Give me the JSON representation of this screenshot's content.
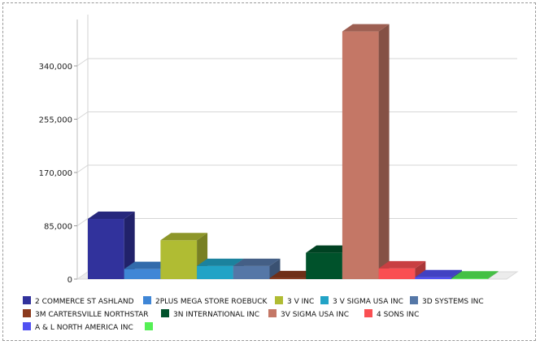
{
  "chart_data": {
    "type": "bar",
    "title": "",
    "xlabel": "",
    "ylabel": "",
    "ylim": [
      0,
      400000
    ],
    "yticks": [
      0,
      85000,
      170000,
      255000,
      340000
    ],
    "ytick_labels": [
      "0",
      "85,000",
      "170,000",
      "255,000",
      "340,000"
    ],
    "grid": true,
    "legend_position": "bottom",
    "three_d": true,
    "categories": [
      "2 COMMERCE ST ASHLAND",
      "2PLUS MEGA STORE ROEBUCK",
      "3 V INC",
      "3 V SIGMA USA INC",
      "3D SYSTEMS INC",
      "3M CARTERSVILLE NORTHSTAR",
      "3N INTERNATIONAL INC",
      "3V SIGMA USA INC",
      "4 SONS INC",
      "A & L NORTH AMERICA INC",
      ""
    ],
    "values": [
      96000,
      16000,
      62000,
      21000,
      21000,
      1500,
      42000,
      395000,
      17000,
      3000,
      1000
    ],
    "colors": [
      "#31329c",
      "#3f86d6",
      "#b0bc33",
      "#22a3c6",
      "#5577a7",
      "#8b3a1d",
      "#00522b",
      "#c47766",
      "#fa4f52",
      "#5151f2",
      "#55f055"
    ]
  }
}
